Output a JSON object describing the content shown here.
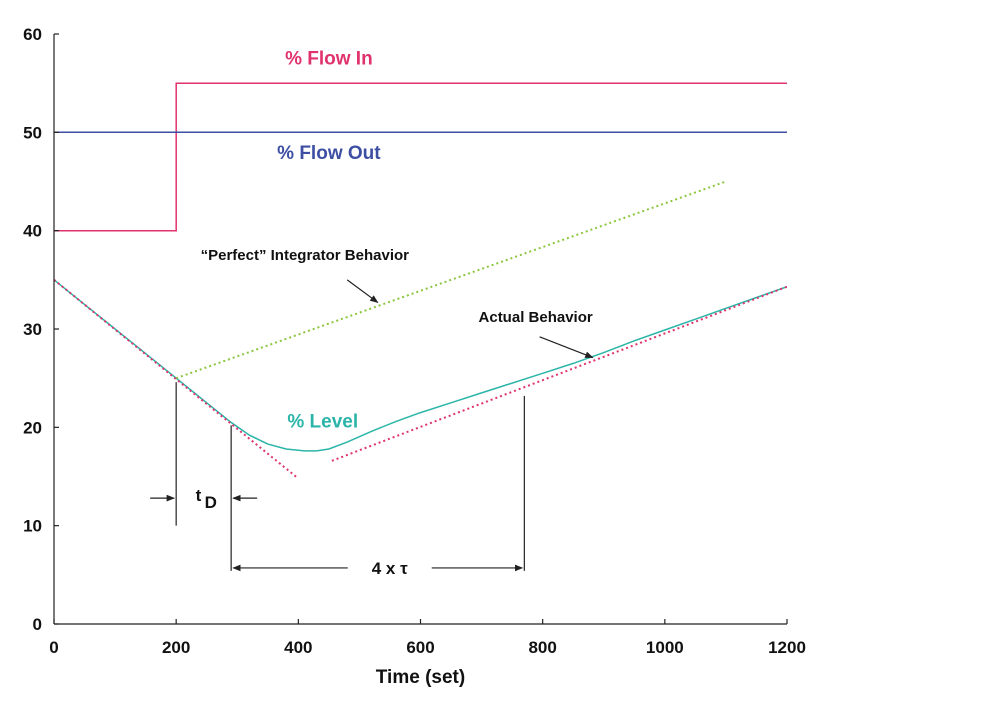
{
  "chart_data": {
    "type": "line",
    "title": "",
    "xlabel": "Time (set)",
    "ylabel": "",
    "xlim": [
      0,
      1200
    ],
    "ylim": [
      0,
      60
    ],
    "xticks": [
      0,
      200,
      400,
      600,
      800,
      1000,
      1200
    ],
    "yticks": [
      0,
      10,
      20,
      30,
      40,
      50,
      60
    ],
    "grid": false,
    "series": [
      {
        "name": "% Flow In",
        "color": "#e0336e",
        "style": "solid",
        "x": [
          0,
          200,
          200,
          1200
        ],
        "y": [
          40,
          40,
          55,
          55
        ]
      },
      {
        "name": "% Flow Out",
        "color": "#3d4fa3",
        "style": "solid",
        "x": [
          0,
          1200
        ],
        "y": [
          50,
          50
        ]
      },
      {
        "name": "% Level",
        "color": "#2bb5a8",
        "style": "solid",
        "x": [
          0,
          50,
          100,
          150,
          200,
          250,
          290,
          320,
          350,
          380,
          410,
          430,
          450,
          480,
          520,
          560,
          600,
          650,
          700,
          750,
          800,
          850,
          900,
          950,
          1000,
          1050,
          1100,
          1150,
          1200
        ],
        "y": [
          35,
          32.5,
          30,
          27.5,
          25,
          22.5,
          20.5,
          19.2,
          18.3,
          17.8,
          17.6,
          17.6,
          17.8,
          18.5,
          19.6,
          20.6,
          21.5,
          22.5,
          23.5,
          24.5,
          25.5,
          26.5,
          27.6,
          28.8,
          29.9,
          31,
          32.1,
          33.2,
          34.3
        ]
      },
      {
        "name": "“Perfect” Integrator Behavior",
        "color": "#8cc63f",
        "style": "dotted",
        "x": [
          200,
          1100
        ],
        "y": [
          25,
          45
        ]
      },
      {
        "name": "",
        "color": "#e0336e",
        "style": "dotted",
        "x": [
          0,
          400
        ],
        "y": [
          35,
          14.8
        ]
      },
      {
        "name": "Actual Behavior",
        "color": "#e0336e",
        "style": "dotted",
        "x": [
          455,
          1200
        ],
        "y": [
          16.6,
          34.3
        ]
      }
    ],
    "series_labels": [
      {
        "text": "% Flow In",
        "x": 450,
        "y": 56.9,
        "color": "#e0336e"
      },
      {
        "text": "% Flow Out",
        "x": 450,
        "y": 47.3,
        "color": "#3d4fa3"
      },
      {
        "text": "% Level",
        "x": 440,
        "y": 20,
        "color": "#2bb5a8"
      }
    ],
    "annotations": [
      {
        "text": "“Perfect” Integrator Behavior",
        "x": 240,
        "y": 37.0,
        "arrow_from": [
          480,
          35.0
        ],
        "arrow_to": [
          530,
          32.7
        ]
      },
      {
        "text": "Actual Behavior",
        "x": 695,
        "y": 30.7,
        "arrow_from": [
          795,
          29.2
        ],
        "arrow_to": [
          882,
          27.1
        ]
      }
    ],
    "markers": {
      "td_label": "t",
      "td_subscript": "D",
      "td_start": 200,
      "td_end": 290,
      "tau_label": "4 x τ",
      "tau_start": 290,
      "tau_end": 770
    }
  }
}
